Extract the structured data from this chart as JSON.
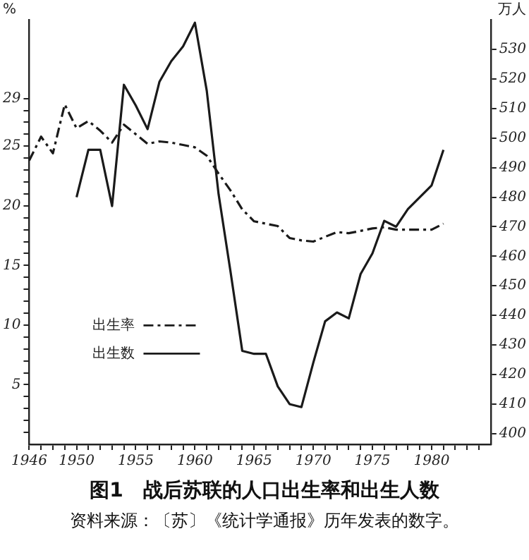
{
  "chart_data": {
    "type": "line",
    "title": "图1　战后苏联的人口出生率和出生人数",
    "annotations": [
      "资料来源：〔苏〕《统计学通报》历年发表的数字。"
    ],
    "ylabel": "%",
    "y2label": "万人",
    "x": [
      1946,
      1947,
      1948,
      1949,
      1950,
      1951,
      1952,
      1953,
      1954,
      1955,
      1956,
      1957,
      1958,
      1959,
      1960,
      1961,
      1962,
      1963,
      1964,
      1965,
      1966,
      1967,
      1968,
      1969,
      1970,
      1971,
      1972,
      1973,
      1974,
      1975,
      1976,
      1977,
      1978,
      1979,
      1980,
      1981
    ],
    "series": [
      {
        "name": "出生率",
        "color": "#1a1a1a",
        "line_style": "dashed",
        "values": [
          23.8,
          25.8,
          24.4,
          28.5,
          26.5,
          27.1,
          26.3,
          25.3,
          26.8,
          26.0,
          25.2,
          25.4,
          25.3,
          25.1,
          24.9,
          24.2,
          22.7,
          21.3,
          19.7,
          18.7,
          18.5,
          18.3,
          17.3,
          17.1,
          17.0,
          17.4,
          17.8,
          17.7,
          17.9,
          18.1,
          18.2,
          18.0,
          18.0,
          18.0,
          18.0,
          18.5
        ]
      },
      {
        "name": "出生数",
        "color": "#1a1a1a",
        "line_style": "solid",
        "axis": "y2",
        "values": [
          null,
          null,
          null,
          null,
          480,
          496,
          496,
          477,
          518,
          511,
          503,
          519,
          526,
          531,
          539,
          516,
          481,
          455,
          428,
          427,
          427,
          416,
          410,
          409,
          424,
          438,
          441,
          439,
          454,
          461,
          472,
          470,
          476,
          480,
          484,
          496
        ]
      }
    ],
    "xlim": [
      1946,
      1985
    ],
    "xticks": [
      1946,
      {
        "value": 1947,
        "label": null
      },
      {
        "value": 1948,
        "label": null
      },
      {
        "value": 1949,
        "label": null
      },
      1950,
      {
        "value": 1951,
        "label": null
      },
      {
        "value": 1952,
        "label": null
      },
      {
        "value": 1953,
        "label": null
      },
      {
        "value": 1954,
        "label": null
      },
      1955,
      {
        "value": 1956,
        "label": null
      },
      {
        "value": 1957,
        "label": null
      },
      {
        "value": 1958,
        "label": null
      },
      {
        "value": 1959,
        "label": null
      },
      1960,
      {
        "value": 1961,
        "label": null
      },
      {
        "value": 1962,
        "label": null
      },
      {
        "value": 1963,
        "label": null
      },
      {
        "value": 1964,
        "label": null
      },
      1965,
      {
        "value": 1966,
        "label": null
      },
      {
        "value": 1967,
        "label": null
      },
      {
        "value": 1968,
        "label": null
      },
      {
        "value": 1969,
        "label": null
      },
      1970,
      {
        "value": 1971,
        "label": null
      },
      {
        "value": 1972,
        "label": null
      },
      {
        "value": 1973,
        "label": null
      },
      {
        "value": 1974,
        "label": null
      },
      1975,
      {
        "value": 1976,
        "label": null
      },
      {
        "value": 1977,
        "label": null
      },
      {
        "value": 1978,
        "label": null
      },
      {
        "value": 1979,
        "label": null
      },
      1980,
      {
        "value": 1981,
        "label": null
      },
      {
        "value": 1982,
        "label": null
      },
      {
        "value": 1983,
        "label": null
      },
      {
        "value": 1984,
        "label": null
      }
    ],
    "ylim": [
      0,
      35.6
    ],
    "yticks": [
      {
        "value": 1,
        "label": null
      },
      {
        "value": 2,
        "label": null
      },
      {
        "value": 3,
        "label": null
      },
      {
        "value": 4,
        "label": null
      },
      5,
      {
        "value": 6,
        "label": null
      },
      {
        "value": 7,
        "label": null
      },
      {
        "value": 8,
        "label": null
      },
      {
        "value": 9,
        "label": null
      },
      10,
      {
        "value": 11,
        "label": null
      },
      {
        "value": 12,
        "label": null
      },
      {
        "value": 13,
        "label": null
      },
      {
        "value": 14,
        "label": null
      },
      15,
      {
        "value": 16,
        "label": null
      },
      {
        "value": 17,
        "label": null
      },
      {
        "value": 18,
        "label": null
      },
      {
        "value": 19,
        "label": null
      },
      20,
      {
        "value": 21,
        "label": null
      },
      {
        "value": 22,
        "label": null
      },
      {
        "value": 23,
        "label": null
      },
      {
        "value": 24,
        "label": null
      },
      25,
      {
        "value": 26,
        "label": null
      },
      {
        "value": 27,
        "label": null
      },
      {
        "value": 28,
        "label": null
      },
      29
    ],
    "y2lim": [
      396.4,
      540
    ],
    "y2ticks": [
      400,
      410,
      420,
      430,
      440,
      450,
      460,
      470,
      480,
      490,
      500,
      510,
      520,
      530
    ],
    "legend": "left",
    "marker": "none",
    "grid": false
  }
}
